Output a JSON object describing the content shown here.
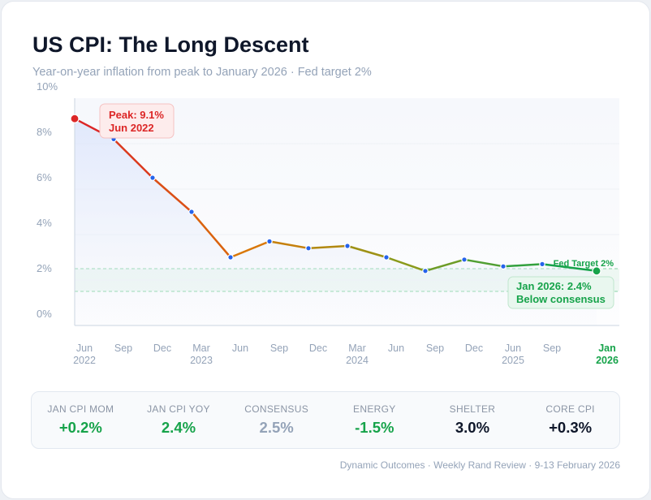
{
  "header": {
    "title": "US CPI: The Long Descent",
    "subtitle": "Year-on-year inflation from peak to January 2026 · Fed target 2%"
  },
  "chart_data": {
    "type": "line",
    "title": "US CPI: The Long Descent",
    "ylim": [
      0,
      10
    ],
    "y_ticks": [
      0,
      2,
      4,
      6,
      8,
      10
    ],
    "y_tick_labels": [
      "0%",
      "2%",
      "4%",
      "6%",
      "8%",
      "10%"
    ],
    "x_labels": [
      [
        "Jun",
        "2022"
      ],
      [
        "Sep",
        ""
      ],
      [
        "Dec",
        ""
      ],
      [
        "Mar",
        "2023"
      ],
      [
        "Jun",
        ""
      ],
      [
        "Sep",
        ""
      ],
      [
        "Dec",
        ""
      ],
      [
        "Mar",
        "2024"
      ],
      [
        "Jun",
        ""
      ],
      [
        "Sep",
        ""
      ],
      [
        "Dec",
        ""
      ],
      [
        "Jun",
        "2025"
      ],
      [
        "Sep",
        ""
      ],
      [
        "Jan",
        "2026"
      ]
    ],
    "values": [
      9.1,
      8.2,
      6.5,
      5.0,
      3.0,
      3.7,
      3.4,
      3.5,
      3.0,
      2.4,
      2.9,
      2.6,
      2.7,
      2.4
    ],
    "target_band": [
      1.5,
      2.5
    ],
    "grid": true,
    "colors": {
      "start": "#dc2626",
      "mid": "#d97706",
      "late": "#8a9a1a",
      "end": "#16a34a",
      "point": "#2563eb",
      "target": "#16a34a"
    },
    "annotations": {
      "peak": {
        "line1": "Peak: 9.1%",
        "line2": "Jun 2022"
      },
      "latest": {
        "line1": "Jan 2026: 2.4%",
        "line2": "Below consensus"
      },
      "target": "Fed Target 2%"
    }
  },
  "stats": [
    {
      "label": "JAN CPI MOM",
      "value": "+0.2%",
      "color": "#16a34a"
    },
    {
      "label": "JAN CPI YOY",
      "value": "2.4%",
      "color": "#16a34a"
    },
    {
      "label": "CONSENSUS",
      "value": "2.5%",
      "color": "#94a3b8"
    },
    {
      "label": "ENERGY",
      "value": "-1.5%",
      "color": "#16a34a"
    },
    {
      "label": "SHELTER",
      "value": "3.0%",
      "color": "#0f172a"
    },
    {
      "label": "CORE CPI",
      "value": "+0.3%",
      "color": "#0f172a"
    }
  ],
  "footer": "Dynamic Outcomes · Weekly Rand Review · 9-13 February 2026"
}
